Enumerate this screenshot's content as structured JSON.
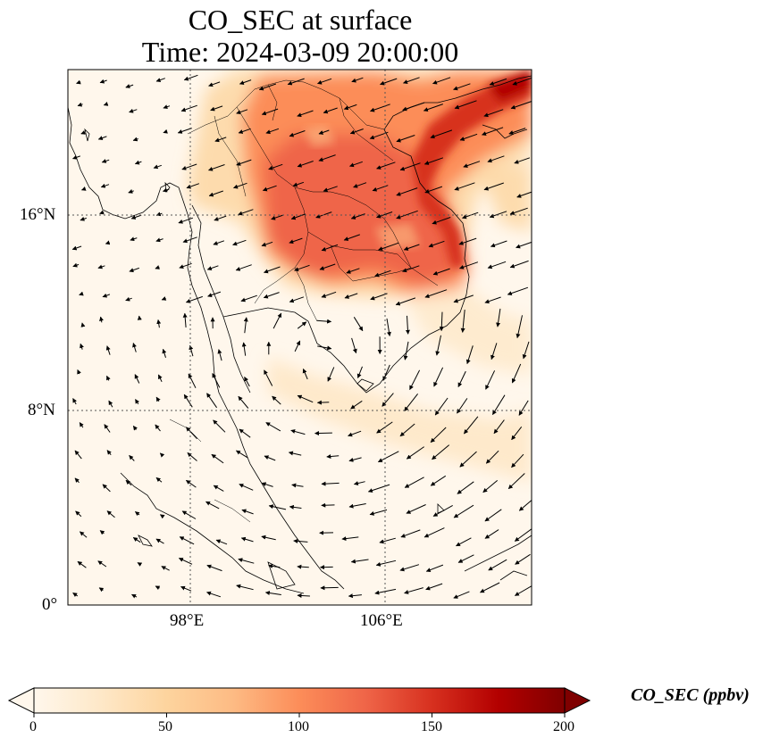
{
  "title": {
    "line1": "CO_SEC at surface",
    "line2": "Time: 2024-03-09 20:00:00"
  },
  "map": {
    "variable": "CO_SEC",
    "level": "surface",
    "lon_range": [
      93,
      112
    ],
    "lat_range": [
      0,
      22
    ],
    "lat_ticks": [
      {
        "value": 16,
        "label": "16°N"
      },
      {
        "value": 8,
        "label": "8°N"
      },
      {
        "value": 0,
        "label": "0°"
      }
    ],
    "lon_ticks": [
      {
        "value": 98,
        "label": "98°E"
      },
      {
        "value": 106,
        "label": "106°E"
      }
    ],
    "gridlines": "dotted",
    "wind_vectors": true,
    "coastlines": true
  },
  "colorbar": {
    "label": "CO_SEC (ppbv)",
    "min": 0,
    "max": 200,
    "ticks": [
      "0",
      "50",
      "100",
      "150",
      "200"
    ],
    "extend": "both",
    "colormap": "OrRd",
    "colors": [
      "#fff7ec",
      "#fee8c8",
      "#fdd49e",
      "#fdbb84",
      "#fc8d59",
      "#ef6548",
      "#d7301f",
      "#b30000",
      "#7f0000"
    ]
  }
}
